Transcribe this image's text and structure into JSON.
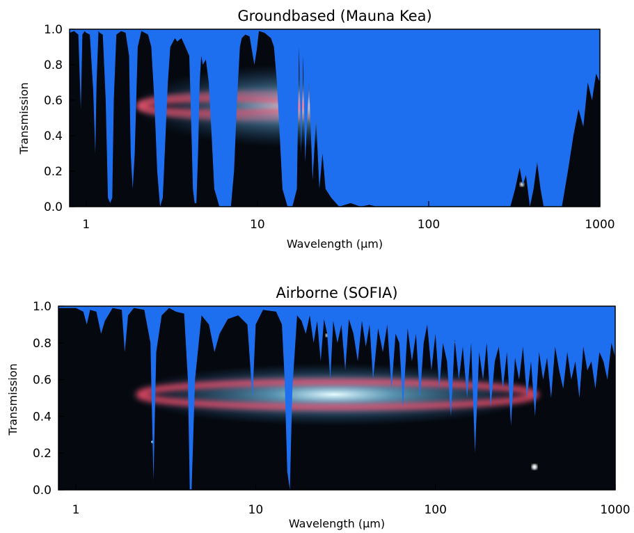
{
  "colors": {
    "sky": "#1e6ff0",
    "space": "#05080e",
    "ring": "#ff4f6e",
    "core": "#aee8ff",
    "axis": "#000000"
  },
  "chart_data": [
    {
      "type": "area",
      "title": "Groundbased (Mauna Kea)",
      "xlabel": "Wavelength (μm)",
      "ylabel": "Transmission",
      "xscale": "log",
      "xlim": [
        0.8,
        1000
      ],
      "ylim": [
        0,
        1
      ],
      "x_ticks": [
        {
          "value": 1,
          "label": "1"
        },
        {
          "value": 10,
          "label": "10"
        },
        {
          "value": 100,
          "label": "100"
        },
        {
          "value": 1000,
          "label": "1000"
        }
      ],
      "y_ticks": [
        {
          "value": 0.0,
          "label": "0.0"
        },
        {
          "value": 0.2,
          "label": "0.2"
        },
        {
          "value": 0.4,
          "label": "0.4"
        },
        {
          "value": 0.6,
          "label": "0.6"
        },
        {
          "value": 0.8,
          "label": "0.8"
        },
        {
          "value": 1.0,
          "label": "1.0"
        }
      ],
      "series": [
        {
          "x": [
            0.8,
            0.85,
            0.9,
            0.93,
            0.95,
            0.98,
            1.0,
            1.05,
            1.1,
            1.13,
            1.15,
            1.18,
            1.2,
            1.25,
            1.3,
            1.34,
            1.38,
            1.42,
            1.45,
            1.5,
            1.6,
            1.7,
            1.78,
            1.82,
            1.87,
            1.92,
            2.0,
            2.1,
            2.2,
            2.3,
            2.4,
            2.5,
            2.6,
            2.7,
            2.8,
            3.0,
            3.1,
            3.3,
            3.4,
            3.6,
            3.8,
            4.0,
            4.1,
            4.2,
            4.3,
            4.4,
            4.5,
            4.6,
            4.7,
            4.8,
            5.0,
            5.2,
            5.4,
            5.6,
            6.0,
            7.0,
            7.3,
            7.6,
            7.9,
            8.1,
            8.5,
            9.0,
            9.6,
            9.9,
            10.2,
            11.0,
            12.0,
            12.5,
            13.0,
            13.5,
            14.0,
            15.0,
            16.0,
            17.0,
            17.5,
            18.0,
            18.5,
            19.0,
            20.0,
            21.0,
            22.0,
            23.0,
            24.0,
            25.0,
            27.0,
            30.0,
            35.0,
            40.0,
            45.0,
            50.0,
            100.0,
            200.0,
            300.0,
            320.0,
            340.0,
            355.0,
            370.0,
            390.0,
            410.0,
            430.0,
            450.0,
            470.0,
            500.0,
            600.0,
            650.0,
            700.0,
            750.0,
            800.0,
            850.0,
            900.0,
            950.0,
            1000.0
          ],
          "y": [
            0.98,
            0.99,
            0.97,
            0.55,
            0.97,
            0.99,
            0.98,
            0.97,
            0.65,
            0.3,
            0.7,
            0.99,
            0.98,
            0.97,
            0.6,
            0.05,
            0.02,
            0.05,
            0.6,
            0.97,
            0.99,
            0.98,
            0.85,
            0.3,
            0.1,
            0.3,
            0.9,
            0.99,
            0.98,
            0.97,
            0.9,
            0.6,
            0.2,
            0.0,
            0.05,
            0.7,
            0.9,
            0.95,
            0.93,
            0.95,
            0.9,
            0.85,
            0.5,
            0.1,
            0.02,
            0.02,
            0.3,
            0.7,
            0.85,
            0.8,
            0.83,
            0.7,
            0.4,
            0.1,
            0.0,
            0.0,
            0.2,
            0.6,
            0.9,
            0.95,
            0.97,
            0.96,
            0.8,
            0.88,
            0.99,
            0.98,
            0.95,
            0.9,
            0.7,
            0.4,
            0.1,
            0.0,
            0.0,
            0.1,
            0.9,
            0.3,
            0.85,
            0.25,
            0.7,
            0.15,
            0.5,
            0.1,
            0.3,
            0.1,
            0.05,
            0.0,
            0.02,
            0.0,
            0.01,
            0.0,
            0.0,
            0.0,
            0.0,
            0.1,
            0.22,
            0.12,
            0.18,
            0.0,
            0.1,
            0.25,
            0.1,
            0.0,
            0.0,
            0.0,
            0.2,
            0.4,
            0.55,
            0.45,
            0.7,
            0.6,
            0.75,
            0.7
          ]
        }
      ]
    },
    {
      "type": "area",
      "title": "Airborne (SOFIA)",
      "xlabel": "Wavelength (μm)",
      "ylabel": "Transmission",
      "xscale": "log",
      "xlim": [
        0.8,
        1000
      ],
      "ylim": [
        0,
        1
      ],
      "x_ticks": [
        {
          "value": 1,
          "label": "1"
        },
        {
          "value": 10,
          "label": "10"
        },
        {
          "value": 100,
          "label": "100"
        },
        {
          "value": 1000,
          "label": "1000"
        }
      ],
      "y_ticks": [
        {
          "value": 0.0,
          "label": "0.0"
        },
        {
          "value": 0.2,
          "label": "0.2"
        },
        {
          "value": 0.4,
          "label": "0.4"
        },
        {
          "value": 0.6,
          "label": "0.6"
        },
        {
          "value": 0.8,
          "label": "0.8"
        },
        {
          "value": 1.0,
          "label": "1.0"
        }
      ],
      "series": [
        {
          "x": [
            0.8,
            0.9,
            1.0,
            1.1,
            1.15,
            1.2,
            1.3,
            1.38,
            1.45,
            1.6,
            1.8,
            1.87,
            1.95,
            2.1,
            2.4,
            2.6,
            2.7,
            2.8,
            3.0,
            3.3,
            3.6,
            4.0,
            4.2,
            4.3,
            4.4,
            4.6,
            5.0,
            5.5,
            5.9,
            6.3,
            7.0,
            8.0,
            9.0,
            9.6,
            10.0,
            11.0,
            13.0,
            14.0,
            14.5,
            15.0,
            15.5,
            16.0,
            17.0,
            18.0,
            19.0,
            20.0,
            21.0,
            22.0,
            23.0,
            24.0,
            25.0,
            26.0,
            27.0,
            28.5,
            30.0,
            31.5,
            33.0,
            35.0,
            37.0,
            39.0,
            41.0,
            43.0,
            45.0,
            48.0,
            51.0,
            54.0,
            57.0,
            60.0,
            63.0,
            66.0,
            70.0,
            74.0,
            78.0,
            82.0,
            86.0,
            90.0,
            95.0,
            100.0,
            105.0,
            110.0,
            116.0,
            122.0,
            128.0,
            135.0,
            142.0,
            150.0,
            158.0,
            166.0,
            175.0,
            184.0,
            193.0,
            203.0,
            214.0,
            225.0,
            237.0,
            250.0,
            263.0,
            277.0,
            292.0,
            307.0,
            323.0,
            340.0,
            358.0,
            377.0,
            397.0,
            418.0,
            440.0,
            463.0,
            488.0,
            514.0,
            541.0,
            570.0,
            600.0,
            632.0,
            665.0,
            700.0,
            737.0,
            776.0,
            817.0,
            860.0,
            905.0,
            953.0,
            1000.0
          ],
          "y": [
            0.99,
            0.99,
            0.99,
            0.97,
            0.9,
            0.98,
            0.97,
            0.85,
            0.92,
            0.99,
            0.98,
            0.75,
            0.95,
            0.99,
            0.98,
            0.8,
            0.05,
            0.75,
            0.95,
            0.99,
            0.97,
            0.96,
            0.6,
            0.0,
            0.0,
            0.6,
            0.95,
            0.9,
            0.75,
            0.85,
            0.93,
            0.95,
            0.9,
            0.5,
            0.9,
            0.98,
            0.97,
            0.9,
            0.6,
            0.1,
            0.0,
            0.55,
            0.95,
            0.92,
            0.85,
            0.95,
            0.8,
            0.92,
            0.7,
            0.93,
            0.85,
            0.6,
            0.92,
            0.8,
            0.9,
            0.65,
            0.93,
            0.85,
            0.7,
            0.92,
            0.78,
            0.9,
            0.6,
            0.88,
            0.75,
            0.9,
            0.55,
            0.85,
            0.8,
            0.45,
            0.88,
            0.7,
            0.85,
            0.5,
            0.8,
            0.9,
            0.65,
            0.85,
            0.55,
            0.8,
            0.7,
            0.4,
            0.82,
            0.6,
            0.78,
            0.5,
            0.8,
            0.2,
            0.75,
            0.6,
            0.8,
            0.45,
            0.7,
            0.78,
            0.55,
            0.75,
            0.35,
            0.72,
            0.6,
            0.78,
            0.5,
            0.7,
            0.4,
            0.75,
            0.6,
            0.72,
            0.5,
            0.78,
            0.65,
            0.55,
            0.75,
            0.6,
            0.7,
            0.5,
            0.78,
            0.65,
            0.7,
            0.55,
            0.75,
            0.7,
            0.6,
            0.8,
            0.72
          ]
        }
      ]
    }
  ]
}
